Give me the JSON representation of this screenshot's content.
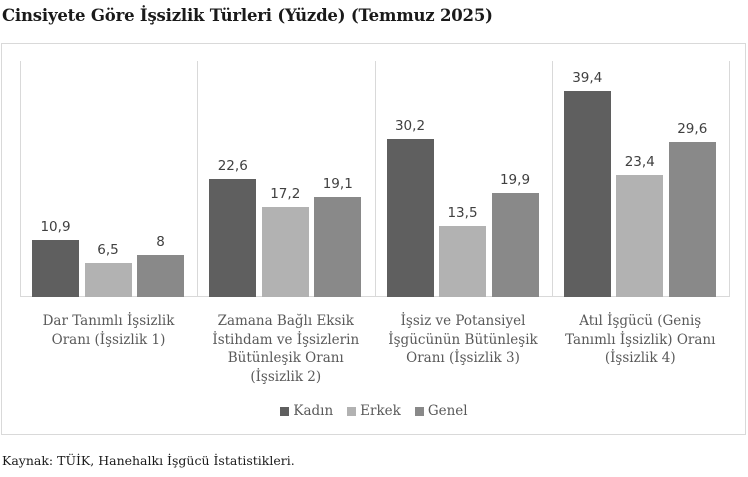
{
  "title": "Cinsiyete Göre İşsizlik Türleri (Yüzde) (Temmuz 2025)",
  "source": "Kaynak: TÜİK, Hanehalkı İşgücü İstatistikleri.",
  "colors": {
    "Kadın": "#5f5f5f",
    "Erkek": "#b2b2b2",
    "Genel": "#898989"
  },
  "legend": [
    {
      "label": "Kadın",
      "color": "#5f5f5f"
    },
    {
      "label": "Erkek",
      "color": "#b2b2b2"
    },
    {
      "label": "Genel",
      "color": "#898989"
    }
  ],
  "categories": [
    {
      "lines": [
        "Dar Tanımlı İşsizlik",
        "Oranı (İşsizlik 1)"
      ]
    },
    {
      "lines": [
        "Zamana Bağlı Eksik",
        "İstihdam ve İşsizlerin",
        "Bütünleşik Oranı",
        "(İşsizlik 2)"
      ]
    },
    {
      "lines": [
        "İşsiz ve Potansiyel",
        "İşgücünün Bütünleşik",
        "Oranı (İşsizlik 3)"
      ]
    },
    {
      "lines": [
        "Atıl İşgücü (Geniş",
        "Tanımlı İşsizlik) Oranı",
        "(İşsizlik 4)"
      ]
    }
  ],
  "value_labels": [
    [
      "10,9",
      "6,5",
      "8"
    ],
    [
      "22,6",
      "17,2",
      "19,1"
    ],
    [
      "30,2",
      "13,5",
      "19,9"
    ],
    [
      "39,4",
      "23,4",
      "29,6"
    ]
  ],
  "chart_data": {
    "type": "bar",
    "title": "Cinsiyete Göre İşsizlik Türleri (Yüzde) (Temmuz 2025)",
    "categories": [
      "Dar Tanımlı İşsizlik Oranı (İşsizlik 1)",
      "Zamana Bağlı Eksik İstihdam ve İşsizlerin Bütünleşik Oranı (İşsizlik 2)",
      "İşsiz ve Potansiyel İşgücünün Bütünleşik Oranı (İşsizlik 3)",
      "Atıl İşgücü (Geniş Tanımlı İşsizlik) Oranı (İşsizlik 4)"
    ],
    "series": [
      {
        "name": "Kadın",
        "values": [
          10.9,
          22.6,
          30.2,
          39.4
        ]
      },
      {
        "name": "Erkek",
        "values": [
          6.5,
          17.2,
          13.5,
          23.4
        ]
      },
      {
        "name": "Genel",
        "values": [
          8,
          19.1,
          19.9,
          29.6
        ]
      }
    ],
    "xlabel": "",
    "ylabel": "",
    "y_axis_visible": false,
    "data_labels": true,
    "grid": false,
    "legend_position": "bottom",
    "source": "Kaynak: TÜİK, Hanehalkı İşgücü İstatistikleri."
  }
}
